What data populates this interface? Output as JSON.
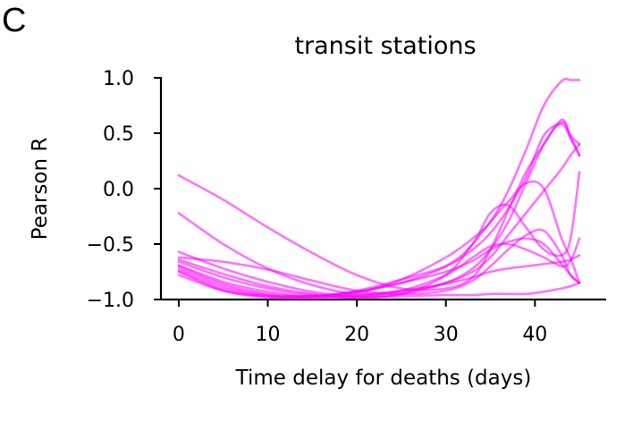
{
  "panel_label": "C",
  "chart_data": {
    "type": "line",
    "title": "transit stations",
    "xlabel": "Time delay for deaths (days)",
    "ylabel": "Pearson R",
    "xlim": [
      -2,
      48
    ],
    "ylim": [
      -1.0,
      1.0
    ],
    "xticks": [
      0,
      10,
      20,
      30,
      40
    ],
    "yticks": [
      -1.0,
      -0.5,
      0.0,
      0.5,
      1.0
    ],
    "xtick_labels": [
      "0",
      "10",
      "20",
      "30",
      "40"
    ],
    "ytick_labels": [
      "−1.0",
      "−0.5",
      "0.0",
      "0.5",
      "1.0"
    ],
    "grid": false,
    "line_color": "#ff00ff",
    "x": [
      0,
      5,
      10,
      15,
      20,
      25,
      30,
      33,
      35,
      37,
      39,
      41,
      43,
      44,
      45
    ],
    "series": [
      {
        "values": [
          0.12,
          -0.1,
          -0.35,
          -0.58,
          -0.78,
          -0.9,
          -0.9,
          -0.8,
          -0.55,
          -0.2,
          0.15,
          0.4,
          0.62,
          0.48,
          0.4
        ]
      },
      {
        "values": [
          -0.22,
          -0.5,
          -0.72,
          -0.87,
          -0.95,
          -0.93,
          -0.85,
          -0.75,
          -0.62,
          -0.42,
          -0.22,
          -0.02,
          0.18,
          0.3,
          0.4
        ]
      },
      {
        "values": [
          -0.57,
          -0.72,
          -0.84,
          -0.93,
          -0.97,
          -0.95,
          -0.85,
          -0.72,
          -0.55,
          -0.3,
          0.05,
          0.4,
          0.6,
          0.47,
          0.3
        ]
      },
      {
        "values": [
          -0.62,
          -0.66,
          -0.73,
          -0.83,
          -0.92,
          -0.95,
          -0.92,
          -0.83,
          -0.7,
          -0.55,
          -0.42,
          -0.38,
          -0.6,
          -0.78,
          -0.85
        ]
      },
      {
        "values": [
          -0.64,
          -0.77,
          -0.88,
          -0.95,
          -0.98,
          -0.95,
          -0.78,
          -0.5,
          -0.3,
          -0.12,
          0.05,
          0.0,
          -0.45,
          -0.63,
          -0.85
        ]
      },
      {
        "values": [
          -0.66,
          -0.8,
          -0.9,
          -0.96,
          -0.97,
          -0.92,
          -0.78,
          -0.62,
          -0.52,
          -0.5,
          -0.55,
          -0.62,
          -0.7,
          -0.65,
          -0.45
        ]
      },
      {
        "values": [
          -0.69,
          -0.84,
          -0.93,
          -0.97,
          -0.94,
          -0.82,
          -0.62,
          -0.45,
          -0.3,
          -0.02,
          0.35,
          0.75,
          0.97,
          0.98,
          0.98
        ]
      },
      {
        "values": [
          -0.7,
          -0.86,
          -0.95,
          -0.97,
          -0.92,
          -0.82,
          -0.7,
          -0.55,
          -0.4,
          -0.18,
          0.1,
          0.48,
          0.58,
          0.45,
          0.3
        ]
      },
      {
        "values": [
          -0.72,
          -0.88,
          -0.96,
          -0.97,
          -0.93,
          -0.85,
          -0.75,
          -0.65,
          -0.55,
          -0.48,
          -0.45,
          -0.5,
          -0.68,
          -0.78,
          -0.85
        ]
      },
      {
        "values": [
          -0.74,
          -0.9,
          -0.97,
          -0.98,
          -0.96,
          -0.92,
          -0.86,
          -0.8,
          -0.75,
          -0.72,
          -0.7,
          -0.68,
          -0.66,
          -0.64,
          -0.6
        ]
      },
      {
        "values": [
          -0.75,
          -0.92,
          -0.98,
          -0.99,
          -0.98,
          -0.97,
          -0.96,
          -0.96,
          -0.95,
          -0.95,
          -0.95,
          -0.93,
          -0.9,
          -0.88,
          -0.85
        ]
      },
      {
        "values": [
          -0.78,
          -0.92,
          -0.97,
          -0.97,
          -0.93,
          -0.85,
          -0.7,
          -0.5,
          -0.22,
          -0.15,
          -0.35,
          -0.55,
          -0.6,
          -0.45,
          0.15
        ]
      }
    ]
  }
}
